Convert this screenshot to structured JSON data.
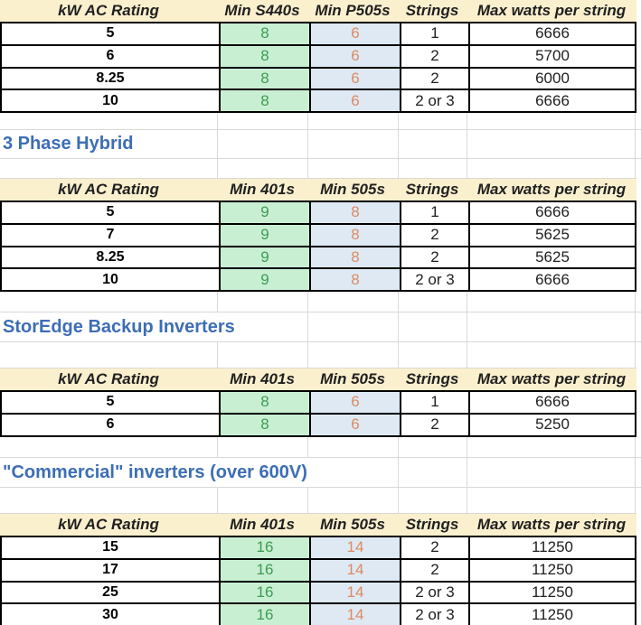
{
  "colors": {
    "header_fill": "#FBF0CE",
    "good_fill": "#C9EFD3",
    "good_text": "#3E9B52",
    "neutral_fill": "#DEE9F4",
    "neutral_text": "#DE8A60",
    "title_text": "#3D6EB5",
    "gridline": "#D9D9D9",
    "border": "#000000"
  },
  "sections": [
    {
      "title": "",
      "table": {
        "columns": [
          "kW AC Rating",
          "Min S440s",
          "Min P505s",
          "Strings",
          "Max watts per string"
        ],
        "rows": [
          [
            "5",
            "8",
            "6",
            "1",
            "6666"
          ],
          [
            "6",
            "8",
            "6",
            "2",
            "5700"
          ],
          [
            "8.25",
            "8",
            "6",
            "2",
            "6000"
          ],
          [
            "10",
            "8",
            "6",
            "2 or 3",
            "6666"
          ]
        ]
      }
    },
    {
      "title": "3 Phase Hybrid",
      "table": {
        "columns": [
          "kW AC Rating",
          "Min 401s",
          "Min 505s",
          "Strings",
          "Max watts per string"
        ],
        "rows": [
          [
            "5",
            "9",
            "8",
            "1",
            "6666"
          ],
          [
            "7",
            "9",
            "8",
            "2",
            "5625"
          ],
          [
            "8.25",
            "9",
            "8",
            "2",
            "5625"
          ],
          [
            "10",
            "9",
            "8",
            "2 or 3",
            "6666"
          ]
        ]
      }
    },
    {
      "title": "StorEdge Backup Inverters",
      "table": {
        "columns": [
          "kW AC Rating",
          "Min 401s",
          "Min 505s",
          "Strings",
          "Max watts per string"
        ],
        "rows": [
          [
            "5",
            "8",
            "6",
            "1",
            "6666"
          ],
          [
            "6",
            "8",
            "6",
            "2",
            "5250"
          ]
        ]
      }
    },
    {
      "title": "\"Commercial\" inverters (over 600V)",
      "table": {
        "columns": [
          "kW AC Rating",
          "Min 401s",
          "Min 505s",
          "Strings",
          "Max watts per string"
        ],
        "rows": [
          [
            "15",
            "16",
            "14",
            "2",
            "11250"
          ],
          [
            "17",
            "16",
            "14",
            "2",
            "11250"
          ],
          [
            "25",
            "16",
            "14",
            "2 or 3",
            "11250"
          ],
          [
            "30",
            "16",
            "14",
            "2 or 3",
            "11250"
          ]
        ]
      }
    }
  ]
}
